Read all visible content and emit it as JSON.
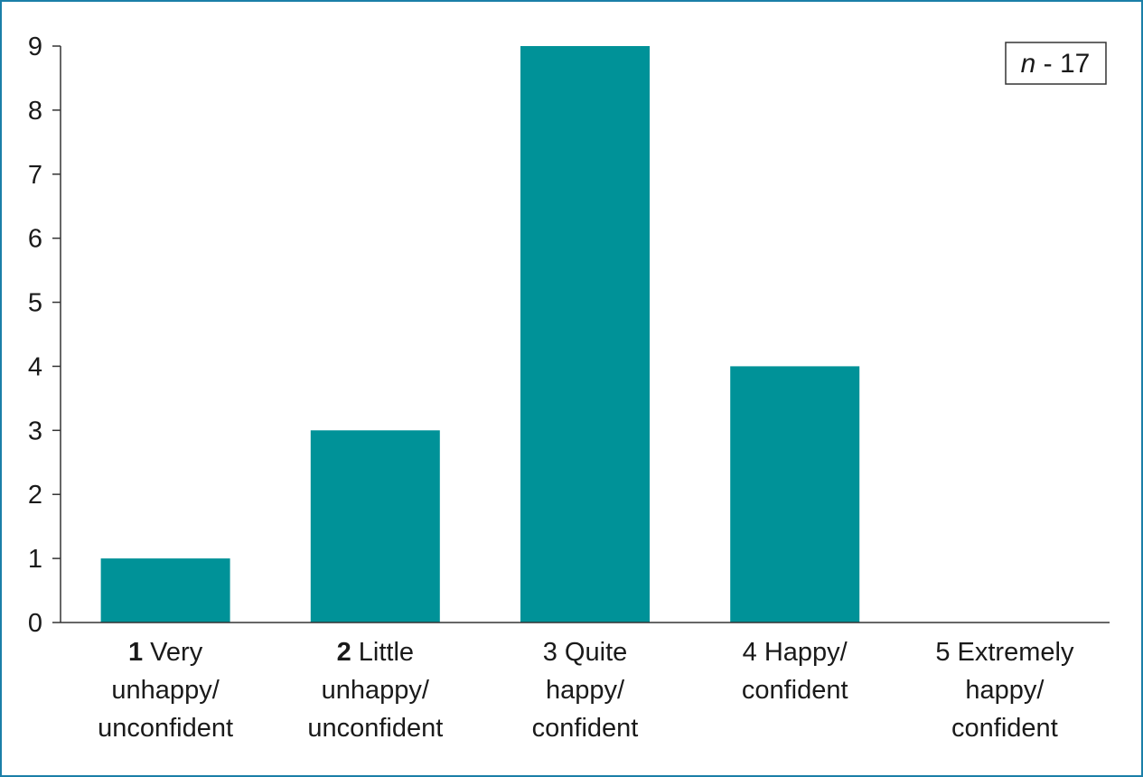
{
  "chart_data": {
    "type": "bar",
    "categories": [
      {
        "lines": [
          {
            "bold": "1",
            "rest": " Very"
          },
          {
            "bold": "",
            "rest": "unhappy/"
          },
          {
            "bold": "",
            "rest": "unconfident"
          }
        ]
      },
      {
        "lines": [
          {
            "bold": "2",
            "rest": " Little"
          },
          {
            "bold": "",
            "rest": "unhappy/"
          },
          {
            "bold": "",
            "rest": "unconfident"
          }
        ]
      },
      {
        "lines": [
          {
            "bold": "",
            "rest": "3 Quite"
          },
          {
            "bold": "",
            "rest": "happy/"
          },
          {
            "bold": "",
            "rest": "confident"
          }
        ]
      },
      {
        "lines": [
          {
            "bold": "",
            "rest": "4 Happy/"
          },
          {
            "bold": "",
            "rest": "confident"
          }
        ]
      },
      {
        "lines": [
          {
            "bold": "",
            "rest": "5 Extremely"
          },
          {
            "bold": "",
            "rest": "happy/"
          },
          {
            "bold": "",
            "rest": "confident"
          }
        ]
      }
    ],
    "values": [
      1,
      3,
      9,
      4,
      0
    ],
    "ylim": [
      0,
      9
    ],
    "yticks": [
      0,
      1,
      2,
      3,
      4,
      5,
      6,
      7,
      8,
      9
    ],
    "grid": false,
    "title": "",
    "xlabel": "",
    "ylabel": "",
    "annotation": {
      "italic": "n",
      "text": " - 17",
      "placement": "top-right"
    },
    "colors": {
      "bar": "#009298",
      "axis": "#333333",
      "frame": "#1b7fa8"
    }
  }
}
